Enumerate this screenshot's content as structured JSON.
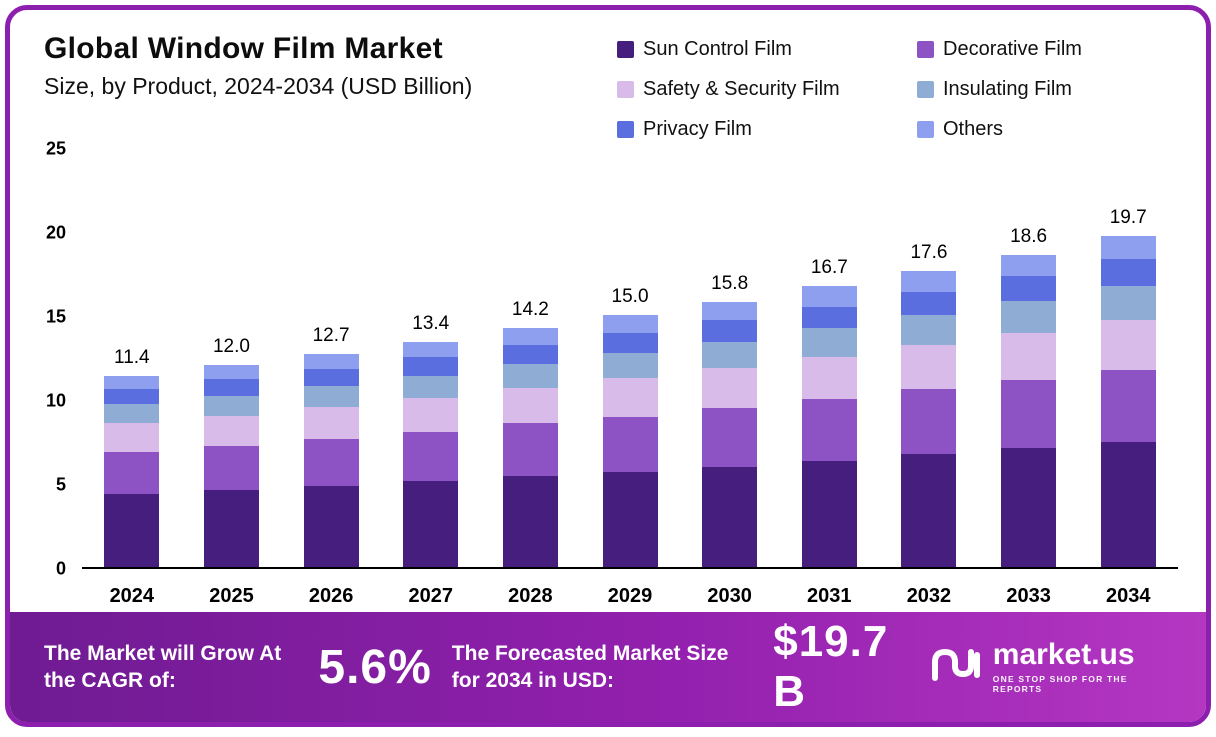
{
  "colors": {
    "card_border": "#8d1fae",
    "footer_gradient_start": "#6f1b92",
    "footer_gradient_end": "#b437c2",
    "axis_line": "#000000"
  },
  "chart_data": {
    "type": "bar",
    "stacked": true,
    "title": "Global Window Film Market",
    "subtitle": "Size, by Product, 2024-2034 (USD Billion)",
    "categories": [
      "2024",
      "2025",
      "2026",
      "2027",
      "2028",
      "2029",
      "2030",
      "2031",
      "2032",
      "2033",
      "2034"
    ],
    "totals": [
      11.4,
      12.0,
      12.7,
      13.4,
      14.2,
      15.0,
      15.8,
      16.7,
      17.6,
      18.6,
      19.7
    ],
    "series": [
      {
        "name": "Sun Control Film",
        "color": "#461e7d",
        "values": [
          4.3,
          4.6,
          4.8,
          5.1,
          5.4,
          5.7,
          6.0,
          6.3,
          6.7,
          7.1,
          7.5
        ]
      },
      {
        "name": "Decorative Film",
        "color": "#8d53c4",
        "values": [
          2.5,
          2.6,
          2.8,
          2.9,
          3.1,
          3.3,
          3.5,
          3.7,
          3.9,
          4.1,
          4.3
        ]
      },
      {
        "name": "Safety & Security Film",
        "color": "#d9bbea",
        "values": [
          1.7,
          1.8,
          1.9,
          2.0,
          2.1,
          2.3,
          2.4,
          2.5,
          2.6,
          2.8,
          3.0
        ]
      },
      {
        "name": "Insulating Film",
        "color": "#8fadd4",
        "values": [
          1.1,
          1.2,
          1.3,
          1.3,
          1.4,
          1.5,
          1.6,
          1.7,
          1.8,
          1.9,
          2.0
        ]
      },
      {
        "name": "Privacy Film",
        "color": "#5b6ee0",
        "values": [
          0.9,
          1.0,
          1.0,
          1.1,
          1.1,
          1.2,
          1.3,
          1.3,
          1.4,
          1.5,
          1.6
        ]
      },
      {
        "name": "Others",
        "color": "#8f9ff0",
        "values": [
          0.8,
          0.8,
          0.9,
          0.9,
          1.0,
          1.1,
          1.1,
          1.2,
          1.2,
          1.3,
          1.4
        ]
      }
    ],
    "ylim": [
      0,
      25
    ],
    "yticks": [
      0,
      5,
      10,
      15,
      20,
      25
    ],
    "legend_position": "top-right",
    "grid": false
  },
  "footer": {
    "cagr_label": "The Market will Grow At the CAGR of:",
    "cagr_value": "5.6%",
    "forecast_label": "The Forecasted Market Size for 2034 in USD:",
    "forecast_value": "$19.7 B",
    "logo_text": "market.us",
    "logo_tagline": "ONE STOP SHOP FOR THE REPORTS"
  }
}
